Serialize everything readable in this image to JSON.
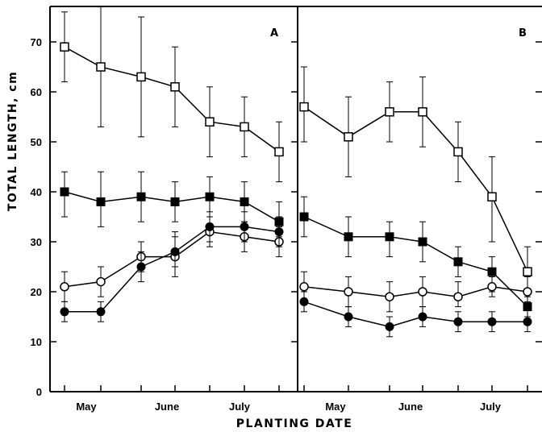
{
  "chart_data": {
    "type": "line",
    "ylabel": "TOTAL LENGTH, cm",
    "xlabel": "PLANTING DATE",
    "ylim": [
      0,
      77
    ],
    "y_ticks": [
      0,
      10,
      20,
      30,
      40,
      50,
      60,
      70
    ],
    "grid": false,
    "x_tick_labels": [
      "May",
      "June",
      "July"
    ],
    "panels": [
      {
        "label": "A",
        "series": [
          {
            "marker": "open-square",
            "values": [
              69,
              65,
              63,
              61,
              54,
              53,
              48
            ],
            "err_low": [
              62,
              53,
              51,
              53,
              47,
              47,
              42
            ],
            "err_high": [
              76,
              77,
              75,
              69,
              61,
              59,
              54
            ]
          },
          {
            "marker": "filled-square",
            "values": [
              40,
              38,
              39,
              38,
              39,
              38,
              34
            ],
            "err_low": [
              35,
              33,
              34,
              34,
              35,
              34,
              31
            ],
            "err_high": [
              44,
              44,
              44,
              42,
              43,
              42,
              38
            ]
          },
          {
            "marker": "open-circle",
            "values": [
              21,
              22,
              27,
              27,
              32,
              31,
              30
            ],
            "err_low": [
              18,
              19,
              24,
              23,
              29,
              28,
              27
            ],
            "err_high": [
              24,
              25,
              30,
              31,
              35,
              34,
              33
            ]
          },
          {
            "marker": "filled-circle",
            "values": [
              16,
              16,
              25,
              28,
              33,
              33,
              32
            ],
            "err_low": [
              14,
              14,
              22,
              25,
              30,
              30,
              29
            ],
            "err_high": [
              18,
              18,
              28,
              32,
              36,
              36,
              35
            ]
          }
        ]
      },
      {
        "label": "B",
        "series": [
          {
            "marker": "open-square",
            "values": [
              57,
              51,
              56,
              56,
              48,
              39,
              24
            ],
            "err_low": [
              50,
              43,
              50,
              49,
              42,
              30,
              18
            ],
            "err_high": [
              65,
              59,
              62,
              63,
              54,
              47,
              29
            ]
          },
          {
            "marker": "filled-square",
            "values": [
              35,
              31,
              31,
              30,
              26,
              24,
              17
            ],
            "err_low": [
              31,
              27,
              27,
              26,
              23,
              20,
              15
            ],
            "err_high": [
              39,
              35,
              34,
              34,
              29,
              27,
              19
            ]
          },
          {
            "marker": "open-circle",
            "values": [
              21,
              20,
              19,
              20,
              19,
              21,
              20
            ],
            "err_low": [
              18,
              17,
              16,
              17,
              17,
              19,
              17
            ],
            "err_high": [
              24,
              23,
              22,
              23,
              22,
              23,
              23
            ]
          },
          {
            "marker": "filled-circle",
            "values": [
              18,
              15,
              13,
              15,
              14,
              14,
              14
            ],
            "err_low": [
              16,
              13,
              11,
              13,
              12,
              12,
              12
            ],
            "err_high": [
              20,
              17,
              15,
              17,
              16,
              16,
              17
            ]
          }
        ]
      }
    ]
  }
}
